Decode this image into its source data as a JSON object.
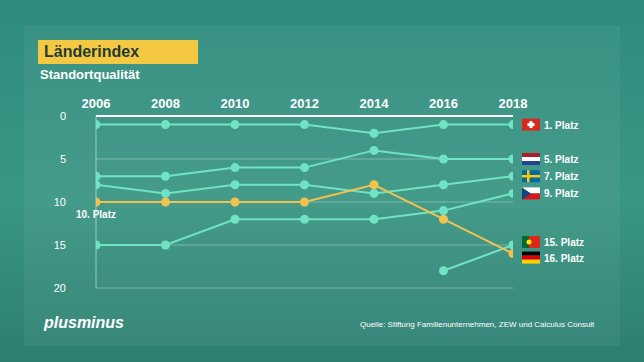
{
  "chart_data": {
    "type": "line",
    "title": "Länderindex",
    "subtitle": "Standortqualität",
    "source": "Quelle: Stiftung Familienunternehmen, ZEW und Calculus Consult",
    "logo": "plusminus",
    "x": [
      2006,
      2008,
      2010,
      2012,
      2014,
      2016,
      2018
    ],
    "xlim": [
      2006,
      2018
    ],
    "xticks": [
      2006,
      2008,
      2010,
      2012,
      2014,
      2016,
      2018
    ],
    "ylim": [
      0,
      20
    ],
    "yticks": [
      0,
      5,
      10,
      15,
      20
    ],
    "grid": true,
    "marker": "circle",
    "series": [
      {
        "color": "#6fe3c3",
        "values": [
          1,
          1,
          1,
          1,
          2,
          1,
          1
        ]
      },
      {
        "color": "#6fe3c3",
        "values": [
          7,
          7,
          6,
          6,
          4,
          5,
          5
        ]
      },
      {
        "color": "#6fe3c3",
        "values": [
          8,
          9,
          8,
          8,
          9,
          8,
          7
        ]
      },
      {
        "color": "#6fe3c3",
        "values": [
          15,
          15,
          12,
          12,
          12,
          11,
          9
        ]
      },
      {
        "color": "#6fe3c3",
        "values": [
          null,
          null,
          null,
          null,
          null,
          18,
          15
        ]
      },
      {
        "color": "#f2c14e",
        "values": [
          10,
          10,
          10,
          10,
          8,
          12,
          16
        ]
      }
    ],
    "annotations": [
      {
        "text": "1. Platz",
        "x": 2018,
        "y": 1
      },
      {
        "text": "5. Platz",
        "x": 2018,
        "y": 5
      },
      {
        "text": "7. Platz",
        "x": 2018,
        "y": 7
      },
      {
        "text": "9. Platz",
        "x": 2018,
        "y": 9
      },
      {
        "text": "15. Platz",
        "x": 2018,
        "y": 15
      },
      {
        "text": "16. Platz",
        "x": 2018,
        "y": 16
      },
      {
        "text": "10. Platz",
        "x": 2006,
        "y": 10
      }
    ]
  }
}
